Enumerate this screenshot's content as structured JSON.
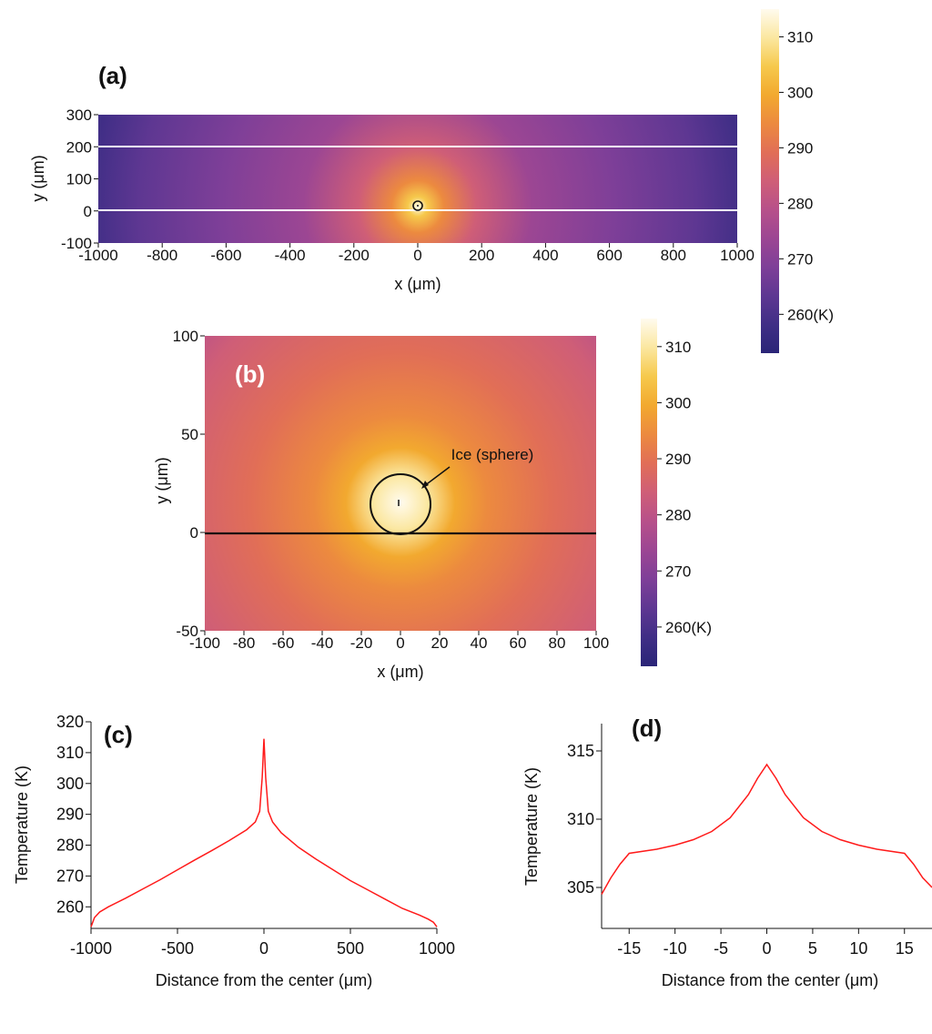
{
  "colormap": [
    "#2a2577",
    "#402e86",
    "#5e3792",
    "#7e3f98",
    "#9c4693",
    "#b7508a",
    "#cf5e77",
    "#e16e57",
    "#ec8a3f",
    "#f2a92f",
    "#f6c94c",
    "#fbe7a0",
    "#fffbee"
  ],
  "curve_color": "#ff1a1a",
  "chart_data": [
    {
      "panel_label": "(a)",
      "type": "heatmap",
      "xlabel": "x (μm)",
      "ylabel": "y (μm)",
      "xlim": [
        -1000,
        1000
      ],
      "ylim": [
        -100,
        300
      ],
      "xticks": [
        "-1000",
        "-800",
        "-600",
        "-400",
        "-200",
        "0",
        "200",
        "400",
        "600",
        "800",
        "1000"
      ],
      "yticks": [
        "-100",
        "0",
        "100",
        "200",
        "300"
      ],
      "boundary_lines_y": [
        0,
        200
      ],
      "sphere": {
        "center_x": 0,
        "center_y": 15,
        "radius": 15
      },
      "colorbar": {
        "min": 253,
        "max": 315,
        "ticks": [
          "260(K)",
          "270",
          "280",
          "290",
          "300",
          "310"
        ],
        "tick_values": [
          260,
          270,
          280,
          290,
          300,
          310
        ]
      }
    },
    {
      "panel_label": "(b)",
      "type": "heatmap",
      "xlabel": "x (μm)",
      "ylabel": "y (μm)",
      "xlim": [
        -100,
        100
      ],
      "ylim": [
        -50,
        100
      ],
      "xticks": [
        "-100",
        "-80",
        "-60",
        "-40",
        "-20",
        "0",
        "20",
        "40",
        "60",
        "80",
        "100"
      ],
      "yticks": [
        "-50",
        "0",
        "50",
        "100"
      ],
      "boundary_lines_y": [
        0
      ],
      "sphere": {
        "center_x": 0,
        "center_y": 15,
        "radius": 15
      },
      "annotation": "Ice (sphere)",
      "colorbar": {
        "min": 253,
        "max": 315,
        "ticks": [
          "260(K)",
          "270",
          "280",
          "290",
          "300",
          "310"
        ],
        "tick_values": [
          260,
          270,
          280,
          290,
          300,
          310
        ]
      }
    },
    {
      "panel_label": "(c)",
      "type": "line",
      "xlabel": "Distance from the center (μm)",
      "ylabel": "Temperature (K)",
      "xlim": [
        -1000,
        1000
      ],
      "ylim": [
        253,
        320
      ],
      "xticks": [
        "-1000",
        "-500",
        "0",
        "500",
        "1000"
      ],
      "xtick_values": [
        -1000,
        -500,
        0,
        500,
        1000
      ],
      "yticks": [
        "260",
        "270",
        "280",
        "290",
        "300",
        "310",
        "320"
      ],
      "ytick_values": [
        260,
        270,
        280,
        290,
        300,
        310,
        320
      ],
      "series": [
        {
          "x": [
            -1000,
            -980,
            -950,
            -900,
            -800,
            -700,
            -600,
            -500,
            -400,
            -300,
            -200,
            -100,
            -50,
            -25,
            -10,
            0,
            10,
            25,
            50,
            100,
            200,
            300,
            400,
            500,
            600,
            700,
            800,
            900,
            950,
            980,
            1000
          ],
          "y": [
            253.5,
            256.5,
            258.3,
            260,
            262.8,
            265.8,
            268.8,
            272,
            275.2,
            278.3,
            281.5,
            285,
            287.5,
            291,
            302,
            314.5,
            302,
            291,
            287.5,
            284,
            279.3,
            275.5,
            272,
            268.5,
            265.5,
            262.5,
            259.5,
            257.3,
            256,
            255,
            253.5
          ]
        }
      ]
    },
    {
      "panel_label": "(d)",
      "type": "line",
      "xlabel": "Distance from the center (μm)",
      "ylabel": "Temperature (K)",
      "xlim": [
        -18,
        18
      ],
      "ylim": [
        302,
        317
      ],
      "xticks": [
        "-15",
        "-10",
        "-5",
        "0",
        "5",
        "10",
        "15"
      ],
      "xtick_values": [
        -15,
        -10,
        -5,
        0,
        5,
        10,
        15
      ],
      "yticks": [
        "305",
        "310",
        "315"
      ],
      "ytick_values": [
        305,
        310,
        315
      ],
      "series": [
        {
          "x": [
            -18,
            -17,
            -16,
            -15,
            -12,
            -10,
            -8,
            -6,
            -4,
            -2,
            -1,
            0,
            1,
            2,
            4,
            6,
            8,
            10,
            12,
            15,
            16,
            17,
            18
          ],
          "y": [
            304.5,
            305.7,
            306.7,
            307.5,
            307.8,
            308.1,
            308.5,
            309.1,
            310.1,
            311.8,
            313,
            314,
            313,
            311.8,
            310.1,
            309.1,
            308.5,
            308.1,
            307.8,
            307.5,
            306.7,
            305.7,
            305
          ]
        }
      ]
    }
  ]
}
